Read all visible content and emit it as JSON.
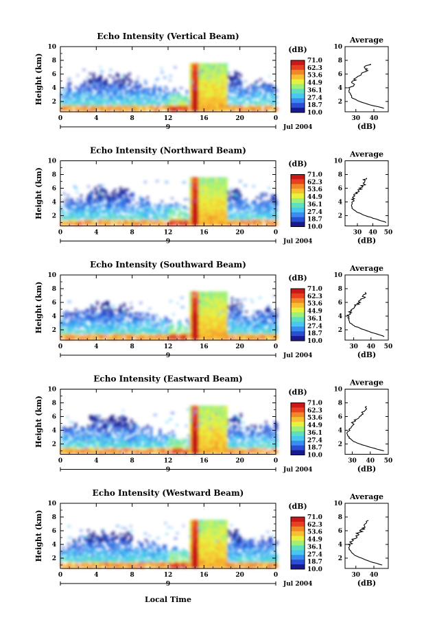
{
  "figure": {
    "xlabel": "Local Time",
    "date_label": "Jul 2004",
    "day_label": "9"
  },
  "colorbar": {
    "unit": "(dB)",
    "levels": [
      "71.0",
      "62.3",
      "53.6",
      "44.9",
      "36.1",
      "27.4",
      "18.7",
      "10.0"
    ],
    "colors": [
      "#1a1a8c",
      "#2a4fd4",
      "#3a8cf0",
      "#48c8f0",
      "#5ee0c0",
      "#9ef078",
      "#e8f040",
      "#f8c030",
      "#f08828",
      "#e84020",
      "#c81818"
    ]
  },
  "chart_data": [
    {
      "type": "heatmap",
      "title": "Echo Intensity (Vertical Beam)",
      "ylabel": "Height (km)",
      "xticks": [
        "0",
        "4",
        "8",
        "12",
        "16",
        "20",
        "0"
      ],
      "yticks": [
        "2",
        "4",
        "6",
        "8",
        "10"
      ],
      "xlim": [
        0,
        24
      ],
      "ylim": [
        0.5,
        10
      ],
      "color_range": [
        10.0,
        71.0
      ],
      "profile": {
        "title": "Average",
        "xlabel": "(dB)",
        "xticks": [
          "30",
          "40"
        ],
        "xlim": [
          24,
          48
        ],
        "heights": [
          1.0,
          1.5,
          2.0,
          2.5,
          3.0,
          3.5,
          4.0,
          4.5,
          5.0,
          5.5,
          6.0,
          6.5,
          7.0,
          7.5
        ],
        "values": [
          46,
          38,
          32,
          28,
          27,
          26,
          27,
          28,
          29,
          31,
          33,
          36,
          35,
          38
        ]
      }
    },
    {
      "type": "heatmap",
      "title": "Echo Intensity (Northward Beam)",
      "ylabel": "Height (km)",
      "xticks": [
        "0",
        "4",
        "8",
        "12",
        "16",
        "20",
        "0"
      ],
      "yticks": [
        "2",
        "4",
        "6",
        "8",
        "10"
      ],
      "xlim": [
        0,
        24
      ],
      "ylim": [
        0.5,
        10
      ],
      "color_range": [
        10.0,
        71.0
      ],
      "profile": {
        "title": "Average",
        "xlabel": "(dB)",
        "xticks": [
          "30",
          "40",
          "50"
        ],
        "xlim": [
          22,
          50
        ],
        "heights": [
          1.0,
          1.5,
          2.0,
          2.5,
          3.0,
          3.5,
          4.0,
          4.5,
          5.0,
          5.5,
          6.0,
          6.5,
          7.0,
          7.5
        ],
        "values": [
          49,
          42,
          35,
          30,
          27,
          26,
          27,
          27,
          28,
          30,
          32,
          34,
          34,
          36
        ]
      }
    },
    {
      "type": "heatmap",
      "title": "Echo Intensity (Southward Beam)",
      "ylabel": "Height (km)",
      "xticks": [
        "0",
        "4",
        "8",
        "12",
        "16",
        "20",
        "0"
      ],
      "yticks": [
        "2",
        "4",
        "6",
        "8",
        "10"
      ],
      "xlim": [
        0,
        24
      ],
      "ylim": [
        0.5,
        10
      ],
      "color_range": [
        10.0,
        71.0
      ],
      "profile": {
        "title": "Average",
        "xlabel": "(dB)",
        "xticks": [
          "30",
          "40",
          "50"
        ],
        "xlim": [
          25,
          50
        ],
        "heights": [
          1.0,
          1.5,
          2.0,
          2.5,
          3.0,
          3.5,
          4.0,
          4.5,
          5.0,
          5.5,
          6.0,
          6.5,
          7.0,
          7.5
        ],
        "values": [
          48,
          42,
          36,
          31,
          28,
          27,
          27,
          28,
          29,
          31,
          33,
          35,
          36,
          37
        ]
      }
    },
    {
      "type": "heatmap",
      "title": "Echo Intensity (Eastward Beam)",
      "ylabel": "Height (km)",
      "xticks": [
        "0",
        "4",
        "8",
        "12",
        "16",
        "20",
        "0"
      ],
      "yticks": [
        "2",
        "4",
        "6",
        "8",
        "10"
      ],
      "xlim": [
        0,
        24
      ],
      "ylim": [
        0.5,
        10
      ],
      "color_range": [
        10.0,
        71.0
      ],
      "profile": {
        "title": "Average",
        "xlabel": "(dB)",
        "xticks": [
          "30",
          "40",
          "50"
        ],
        "xlim": [
          26,
          50
        ],
        "heights": [
          1.0,
          1.5,
          2.0,
          2.5,
          3.0,
          3.5,
          4.0,
          4.5,
          5.0,
          5.5,
          6.0,
          6.5,
          7.0,
          7.5
        ],
        "values": [
          48,
          40,
          34,
          30,
          28,
          27,
          28,
          29,
          30,
          32,
          34,
          36,
          37,
          38
        ]
      }
    },
    {
      "type": "heatmap",
      "title": "Echo Intensity (Westward Beam)",
      "ylabel": "Height (km)",
      "xticks": [
        "0",
        "4",
        "8",
        "12",
        "16",
        "20",
        "0"
      ],
      "yticks": [
        "2",
        "4",
        "6",
        "8",
        "10"
      ],
      "xlim": [
        0,
        24
      ],
      "ylim": [
        0.5,
        10
      ],
      "color_range": [
        10.0,
        71.0
      ],
      "profile": {
        "title": "Average",
        "xlabel": "(dB)",
        "xticks": [
          "30",
          "40"
        ],
        "xlim": [
          24,
          48
        ],
        "heights": [
          1.0,
          1.5,
          2.0,
          2.5,
          3.0,
          3.5,
          4.0,
          4.5,
          5.0,
          5.5,
          6.0,
          6.5,
          7.0,
          7.5
        ],
        "values": [
          45,
          38,
          33,
          29,
          27,
          26,
          27,
          28,
          30,
          31,
          33,
          35,
          36,
          37
        ]
      }
    }
  ]
}
